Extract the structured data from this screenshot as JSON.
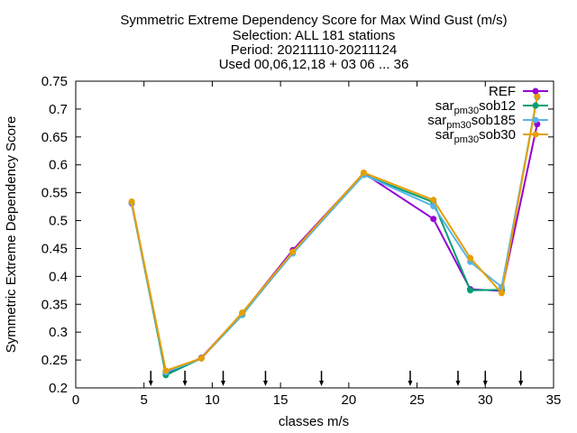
{
  "chart_data": {
    "type": "line",
    "title_lines": [
      "Symmetric Extreme Dependency Score  for Max Wind Gust (m/s)",
      "Selection: ALL     181 stations",
      "Period: 20211110-20211124",
      "Used 00,06,12,18 + 03 06 ... 36"
    ],
    "xlabel": "classes m/s",
    "ylabel": "Symmetric Extreme Dependency Score",
    "xlim": [
      0,
      35
    ],
    "ylim": [
      0.2,
      0.75
    ],
    "xticks": [
      0,
      5,
      10,
      15,
      20,
      25,
      30,
      35
    ],
    "yticks": [
      0.2,
      0.25,
      0.3,
      0.35,
      0.4,
      0.45,
      0.5,
      0.55,
      0.6,
      0.65,
      0.7,
      0.75
    ],
    "ytick_labels": [
      "0.2",
      "0.25",
      "0.3",
      "0.35",
      "0.4",
      "0.45",
      "0.5",
      "0.55",
      "0.6",
      "0.65",
      "0.7",
      "0.75"
    ],
    "grid": false,
    "legend_position": "top-right",
    "class_arrows_x": [
      5.5,
      8.0,
      10.8,
      13.9,
      18.0,
      24.5,
      28.0,
      30.0,
      32.6
    ],
    "x": [
      4.1,
      6.6,
      9.2,
      12.2,
      15.9,
      21.1,
      26.2,
      28.9,
      31.2,
      33.8
    ],
    "series": [
      {
        "name": "REF",
        "color": "#9400d3",
        "values": [
          0.531,
          0.226,
          0.254,
          0.334,
          0.447,
          0.585,
          0.503,
          0.377,
          0.374,
          0.673
        ]
      },
      {
        "name": "sar_pm30_sob12",
        "color": "#009e73",
        "values": [
          0.532,
          0.223,
          0.253,
          0.331,
          0.443,
          0.582,
          0.533,
          0.375,
          0.376,
          0.722
        ]
      },
      {
        "name": "sar_pm30_sob185",
        "color": "#56b4e9",
        "values": [
          0.532,
          0.228,
          0.253,
          0.332,
          0.441,
          0.582,
          0.526,
          0.426,
          0.381,
          0.721
        ]
      },
      {
        "name": "sar_pm30_sob30",
        "color": "#e69f00",
        "values": [
          0.534,
          0.231,
          0.253,
          0.335,
          0.444,
          0.586,
          0.537,
          0.433,
          0.37,
          0.723
        ]
      }
    ]
  }
}
